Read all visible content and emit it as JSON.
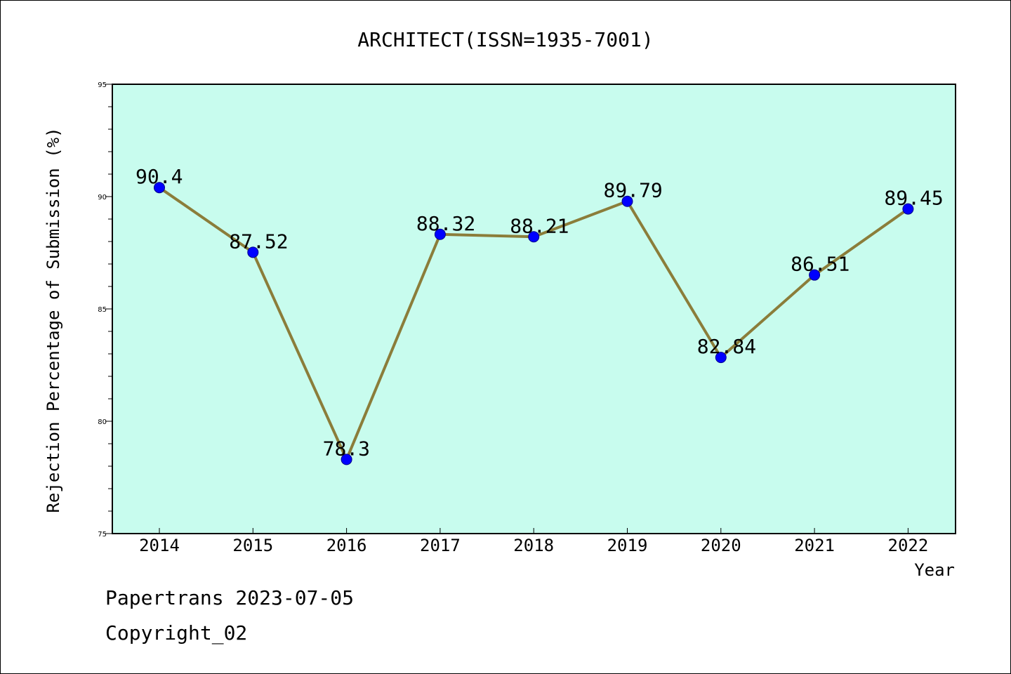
{
  "chart_data": {
    "type": "line",
    "title": "ARCHITECT(ISSN=1935-7001)",
    "xlabel": "Year",
    "ylabel": "Rejection Percentage of Submission (%)",
    "categories": [
      "2014",
      "2015",
      "2016",
      "2017",
      "2018",
      "2019",
      "2020",
      "2021",
      "2022"
    ],
    "series": [
      {
        "values": [
          90.4,
          87.52,
          78.3,
          88.32,
          88.21,
          89.79,
          82.84,
          86.51,
          89.45
        ]
      }
    ],
    "data_labels": [
      "90.4",
      "87.52",
      "78.3",
      "88.32",
      "88.21",
      "89.79",
      "82.84",
      "86.51",
      "89.45"
    ],
    "ylim": [
      75,
      95
    ],
    "yticks": [
      75,
      80,
      85,
      90,
      95
    ],
    "grid": false,
    "legend": "none",
    "colors": {
      "plot_background": "#c8fcee",
      "line": "#8b7d3a",
      "marker": "#0000ff"
    }
  },
  "footer": {
    "line1": "Papertrans 2023-07-05",
    "line2": "Copyright_02"
  }
}
